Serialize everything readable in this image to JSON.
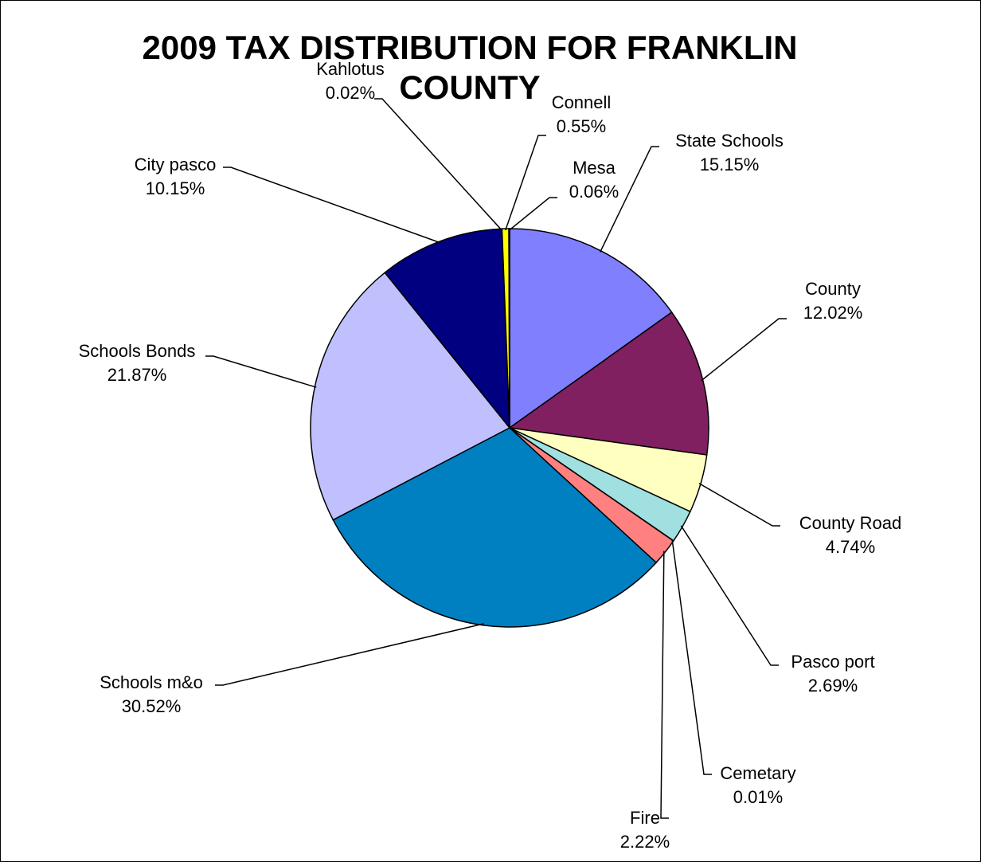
{
  "chart_data": {
    "type": "pie",
    "title": "2009 TAX DISTRIBUTION FOR FRANKLIN COUNTY",
    "title_lines": [
      "2009 TAX DISTRIBUTION FOR FRANKLIN",
      "COUNTY"
    ],
    "start": "12 o'clock",
    "direction": "clockwise",
    "legend": "none",
    "slices": [
      {
        "label": "State Schools",
        "value": 15.15,
        "value_label": "15.15%",
        "color": "#8080FF"
      },
      {
        "label": "County",
        "value": 12.02,
        "value_label": "12.02%",
        "color": "#802060"
      },
      {
        "label": "County Road",
        "value": 4.74,
        "value_label": "4.74%",
        "color": "#FFFFC0"
      },
      {
        "label": "Pasco port",
        "value": 2.69,
        "value_label": "2.69%",
        "color": "#A0E0E0"
      },
      {
        "label": "Cemetary",
        "value": 0.01,
        "value_label": "0.01%",
        "color": "#600080"
      },
      {
        "label": "Fire",
        "value": 2.22,
        "value_label": "2.22%",
        "color": "#FF8080"
      },
      {
        "label": "Schools m&o",
        "value": 30.52,
        "value_label": "30.52%",
        "color": "#0080C0"
      },
      {
        "label": "Schools Bonds",
        "value": 21.87,
        "value_label": "21.87%",
        "color": "#C0C0FF"
      },
      {
        "label": "City pasco",
        "value": 10.15,
        "value_label": "10.15%",
        "color": "#000080"
      },
      {
        "label": "Kahlotus",
        "value": 0.02,
        "value_label": "0.02%",
        "color": "#FF00FF"
      },
      {
        "label": "Connell",
        "value": 0.55,
        "value_label": "0.55%",
        "color": "#FFFF00"
      },
      {
        "label": "Mesa",
        "value": 0.06,
        "value_label": "0.06%",
        "color": "#00FFFF"
      }
    ]
  }
}
